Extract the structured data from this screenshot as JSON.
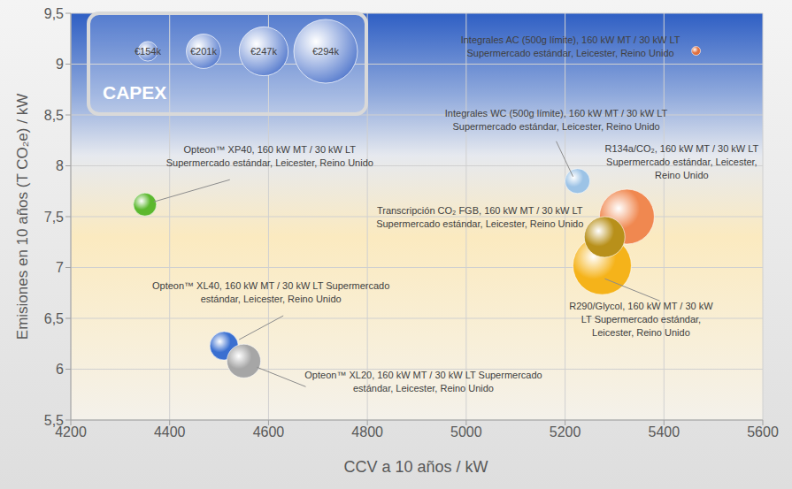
{
  "chart_data": {
    "type": "bubble",
    "x_label": "CCV a 10 años / kW",
    "y_label": "Emisiones en 10 años (T CO₂e) / kW",
    "xlim": [
      4200,
      5600
    ],
    "xticks": [
      4200,
      4400,
      4600,
      4800,
      5000,
      5200,
      5400,
      5600
    ],
    "ylim": [
      5.5,
      9.5
    ],
    "yticks": [
      {
        "value": 5.5,
        "label": "5,5"
      },
      6,
      {
        "value": 6.5,
        "label": "6,5"
      },
      7,
      {
        "value": 7.5,
        "label": "7,5"
      },
      8,
      {
        "value": 8.5,
        "label": "8,5"
      },
      9,
      {
        "value": 9.5,
        "label": "9,5"
      }
    ],
    "grid": true,
    "size_legend": {
      "title": "CAPEX",
      "values": [
        154,
        201,
        247,
        294
      ],
      "labels": [
        "€154k",
        "€201k",
        "€247k",
        "€294k"
      ]
    },
    "series": [
      {
        "label": [
          "Opteon™ XP40, 160 kW MT / 30 kW LT",
          "Supermercado estándar, Leicester, Reino Unido"
        ],
        "color": "#5cb82e",
        "x": [
          4350
        ],
        "values": [
          7.62
        ],
        "capex": [
          165
        ]
      },
      {
        "label": [
          "Integrales WC (500g límite), 160 kW MT / 30 kW LT",
          "Supermercado estándar, Leicester, Reino Unido"
        ],
        "color": "#9cc3e6",
        "x": [
          5225
        ],
        "values": [
          7.85
        ],
        "capex": [
          171
        ]
      },
      {
        "label": [
          "Integrales AC (500g límite), 160 kW MT / 30 kW LT",
          "Supermercado estándar, Leicester, Reino Unido"
        ],
        "color": "#e07040",
        "x": [
          5465
        ],
        "values": [
          9.13
        ],
        "capex": [
          120
        ]
      },
      {
        "label": [
          "R134a/CO₂, 160 kW MT / 30 kW LT",
          "Supermercado estándar, Leicester,",
          "Reino Unido"
        ],
        "color": "#f08850",
        "x": [
          5325
        ],
        "values": [
          7.5
        ],
        "capex": [
          266
        ]
      },
      {
        "label": [
          "R290/Glycol, 160 kW MT / 30 kW",
          "LT Supermercado estándar,",
          "Leicester, Reino Unido"
        ],
        "color": "#f5b31a",
        "x": [
          5275
        ],
        "values": [
          7.02
        ],
        "capex": [
          277
        ]
      },
      {
        "label": [
          "Transcripción CO₂ FGB, 160 kW MT / 30 kW LT",
          "Supermercado estándar, Leicester, Reino Unido"
        ],
        "color": "#b8901a",
        "x": [
          5280
        ],
        "values": [
          7.3
        ],
        "capex": [
          221
        ]
      },
      {
        "label": [
          "Opteon™ XL40, 160 kW MT / 30 kW LT Supermercado",
          "estándar, Leicester, Reino Unido"
        ],
        "color": "#3a6fd0",
        "x": [
          4510
        ],
        "values": [
          6.23
        ],
        "capex": [
          182
        ]
      },
      {
        "label": [
          "Opteon™ XL20, 160 kW MT / 30 kW LT Supermercado",
          "estándar, Leicester, Reino Unido"
        ],
        "color": "#a6a6a6",
        "x": [
          4550
        ],
        "values": [
          6.08
        ],
        "capex": [
          199
        ]
      }
    ]
  }
}
